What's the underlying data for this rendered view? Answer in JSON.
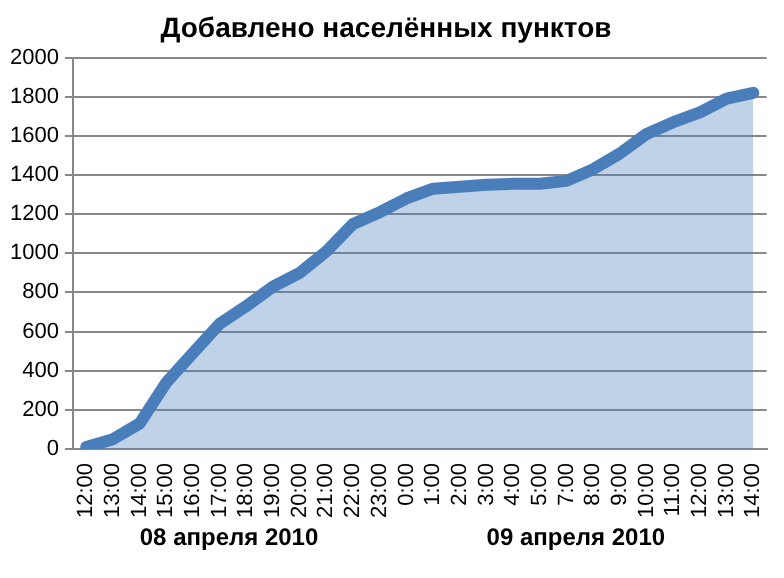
{
  "chart_data": {
    "type": "area",
    "title": "Добавлено населённых пунктов",
    "categories": [
      "12:00",
      "13:00",
      "14:00",
      "15:00",
      "16:00",
      "17:00",
      "18:00",
      "19:00",
      "20:00",
      "21:00",
      "22:00",
      "23:00",
      "0:00",
      "1:00",
      "2:00",
      "3:00",
      "4:00",
      "5:00",
      "7:00",
      "8:00",
      "9:00",
      "10:00",
      "11:00",
      "12:00",
      "13:00",
      "14:00"
    ],
    "values": [
      10,
      50,
      130,
      340,
      490,
      640,
      730,
      830,
      900,
      1010,
      1150,
      1210,
      1280,
      1330,
      1340,
      1350,
      1355,
      1355,
      1370,
      1430,
      1510,
      1610,
      1670,
      1720,
      1790,
      1820
    ],
    "color": "#4a7ebb",
    "ylim": [
      0,
      2000
    ],
    "yticks": [
      0,
      200,
      400,
      600,
      800,
      1000,
      1200,
      1400,
      1600,
      1800,
      2000
    ],
    "grid": "y",
    "legend": false,
    "annotations": [
      "08 апреля 2010",
      "09 апреля 2010"
    ]
  }
}
